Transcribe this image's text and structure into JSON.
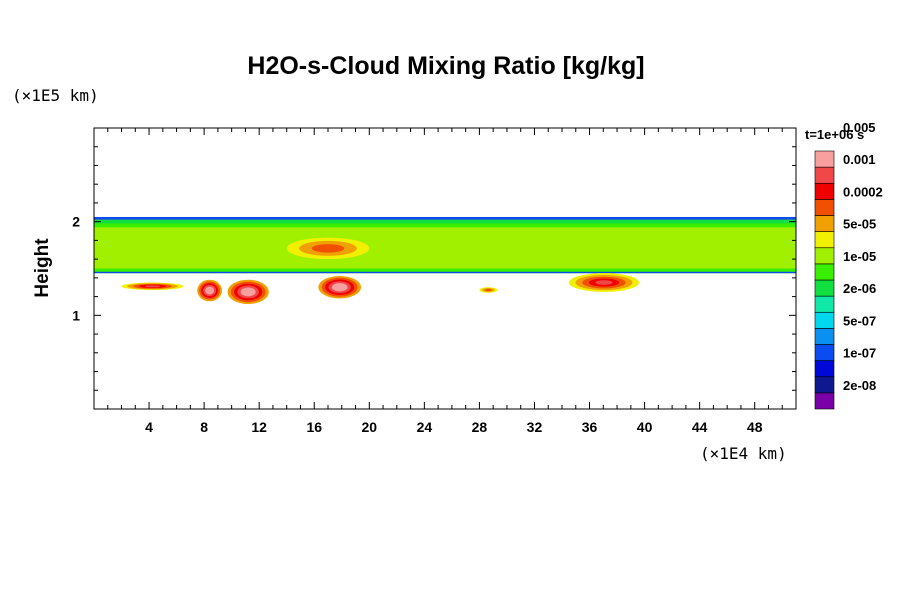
{
  "chart_data": {
    "type": "heatmap",
    "title": "H2O-s-Cloud Mixing Ratio [kg/kg]",
    "ylabel": "Height",
    "x_unit": "(×1E4 km)",
    "y_unit": "(×1E5 km)",
    "time_label": "t=1e+06 s",
    "xlim": [
      0,
      51
    ],
    "ylim": [
      0,
      3
    ],
    "x_ticks": [
      4,
      8,
      12,
      16,
      20,
      24,
      28,
      32,
      36,
      40,
      44,
      48
    ],
    "y_ticks": [
      1,
      2
    ],
    "grid": false,
    "colorbar": {
      "colors": [
        "#7a00a8",
        "#101890",
        "#0008d8",
        "#0a4cf0",
        "#0a90f0",
        "#00d8f0",
        "#10e8a8",
        "#10e040",
        "#38f000",
        "#a0f000",
        "#f0f000",
        "#f0a000",
        "#f05000",
        "#f00000",
        "#f04848",
        "#f8a0a0"
      ],
      "labels": [
        "2e-08",
        "1e-07",
        "5e-07",
        "2e-06",
        "1e-05",
        "5e-05",
        "0.0002",
        "0.001",
        "0.005"
      ]
    },
    "cloud_layer": {
      "base": 1.45,
      "top": 2.05,
      "dominant_level": "1e-05",
      "top_edge_level": "1e-07"
    },
    "features": [
      {
        "kind": "band",
        "x": [
          2,
          6.5
        ],
        "y": [
          1.27,
          1.35
        ],
        "level": "0.0002"
      },
      {
        "kind": "blob",
        "x": [
          7.5,
          9.3
        ],
        "y": [
          1.15,
          1.38
        ],
        "level": "0.001"
      },
      {
        "kind": "blob",
        "x": [
          9.7,
          12.7
        ],
        "y": [
          1.12,
          1.38
        ],
        "level": "0.001"
      },
      {
        "kind": "blob",
        "x": [
          16.3,
          19.4
        ],
        "y": [
          1.18,
          1.42
        ],
        "level": "0.001"
      },
      {
        "kind": "blob",
        "x": [
          28,
          29.3
        ],
        "y": [
          1.24,
          1.3
        ],
        "level": "5e-05"
      },
      {
        "kind": "blob",
        "x": [
          34.5,
          39.6
        ],
        "y": [
          1.25,
          1.45
        ],
        "level": "0.0002"
      },
      {
        "kind": "blob",
        "x": [
          14,
          20
        ],
        "y": [
          1.6,
          1.83
        ],
        "level": "5e-05"
      }
    ]
  }
}
